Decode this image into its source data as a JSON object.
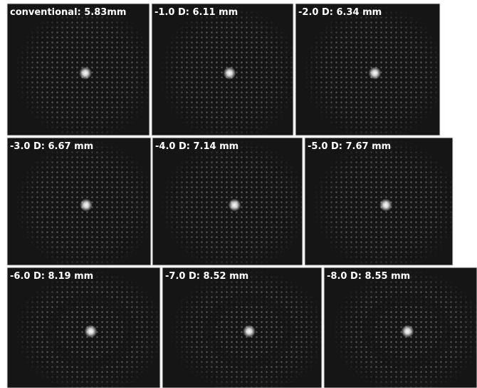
{
  "panels": [
    {
      "label": "conventional: 5.83mm"
    },
    {
      "label": "-1.0 D: 6.11 mm"
    },
    {
      "label": "-2.0 D: 6.34 mm"
    },
    {
      "label": "-3.0 D: 6.67 mm"
    },
    {
      "label": "-4.0 D: 7.14 mm"
    },
    {
      "label": "-5.0 D: 7.67 mm"
    },
    {
      "label": "-6.0 D: 8.19 mm"
    },
    {
      "label": "-7.0 D: 8.52 mm"
    },
    {
      "label": "-8.0 D: 8.55 mm"
    }
  ]
}
